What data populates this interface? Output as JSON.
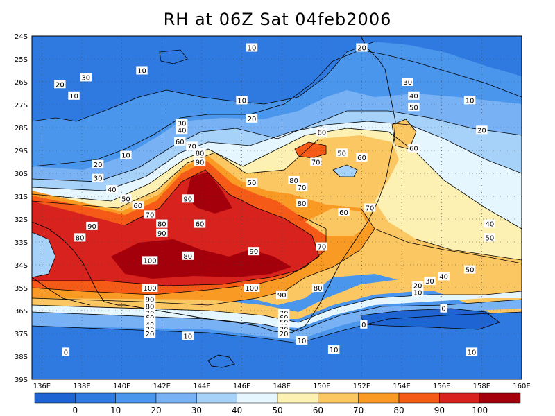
{
  "title": "RH at 06Z Sat 04feb2006",
  "map": {
    "lat_labels": [
      "24S",
      "25S",
      "26S",
      "27S",
      "28S",
      "29S",
      "30S",
      "31S",
      "32S",
      "33S",
      "34S",
      "35S",
      "36S",
      "37S",
      "38S",
      "39S"
    ],
    "lon_labels": [
      "136E",
      "138E",
      "140E",
      "142E",
      "144E",
      "146E",
      "148E",
      "150E",
      "152E",
      "154E",
      "156E",
      "158E",
      "160E"
    ],
    "lon_range": [
      135.5,
      160
    ],
    "lat_range": [
      -39,
      -24
    ],
    "grid": "dotted",
    "contour_labels": [
      {
        "text": "10",
        "lon": 146.5,
        "lat": -24.5
      },
      {
        "text": "20",
        "lon": 152,
        "lat": -24.5
      },
      {
        "text": "10",
        "lon": 141,
        "lat": -25.5
      },
      {
        "text": "30",
        "lon": 138.2,
        "lat": -25.8
      },
      {
        "text": "30",
        "lon": 154.3,
        "lat": -26
      },
      {
        "text": "20",
        "lon": 136.9,
        "lat": -26.1
      },
      {
        "text": "10",
        "lon": 137.6,
        "lat": -26.6
      },
      {
        "text": "40",
        "lon": 154.6,
        "lat": -26.6
      },
      {
        "text": "10",
        "lon": 146,
        "lat": -26.8
      },
      {
        "text": "10",
        "lon": 157.4,
        "lat": -26.8
      },
      {
        "text": "50",
        "lon": 154.6,
        "lat": -27.1
      },
      {
        "text": "20",
        "lon": 146.5,
        "lat": -27.6
      },
      {
        "text": "30",
        "lon": 143,
        "lat": -27.8
      },
      {
        "text": "40",
        "lon": 143,
        "lat": -28.1
      },
      {
        "text": "20",
        "lon": 158,
        "lat": -28.1
      },
      {
        "text": "60",
        "lon": 150,
        "lat": -28.2
      },
      {
        "text": "10",
        "lon": 140.2,
        "lat": -29.2
      },
      {
        "text": "60",
        "lon": 142.9,
        "lat": -28.6
      },
      {
        "text": "70",
        "lon": 143.5,
        "lat": -28.8
      },
      {
        "text": "60",
        "lon": 154.6,
        "lat": -28.9
      },
      {
        "text": "80",
        "lon": 143.9,
        "lat": -29.1
      },
      {
        "text": "50",
        "lon": 151,
        "lat": -29.1
      },
      {
        "text": "60",
        "lon": 152,
        "lat": -29.3
      },
      {
        "text": "90",
        "lon": 143.9,
        "lat": -29.5
      },
      {
        "text": "70",
        "lon": 149.7,
        "lat": -29.5
      },
      {
        "text": "20",
        "lon": 138.8,
        "lat": -29.6
      },
      {
        "text": "30",
        "lon": 138.8,
        "lat": -30.2
      },
      {
        "text": "50",
        "lon": 146.5,
        "lat": -30.4
      },
      {
        "text": "80",
        "lon": 148.6,
        "lat": -30.3
      },
      {
        "text": "40",
        "lon": 139.5,
        "lat": -30.7
      },
      {
        "text": "70",
        "lon": 149,
        "lat": -30.6
      },
      {
        "text": "50",
        "lon": 140.2,
        "lat": -31.1
      },
      {
        "text": "90",
        "lon": 143.3,
        "lat": -31.1
      },
      {
        "text": "80",
        "lon": 149,
        "lat": -31.3
      },
      {
        "text": "60",
        "lon": 140.8,
        "lat": -31.4
      },
      {
        "text": "70",
        "lon": 152.4,
        "lat": -31.5
      },
      {
        "text": "60",
        "lon": 151.1,
        "lat": -31.7
      },
      {
        "text": "70",
        "lon": 141.4,
        "lat": -31.8
      },
      {
        "text": "40",
        "lon": 158.4,
        "lat": -32.2
      },
      {
        "text": "80",
        "lon": 142,
        "lat": -32.2
      },
      {
        "text": "60",
        "lon": 143.9,
        "lat": -32.2
      },
      {
        "text": "90",
        "lon": 138.5,
        "lat": -32.3
      },
      {
        "text": "90",
        "lon": 142,
        "lat": -32.6
      },
      {
        "text": "80",
        "lon": 137.9,
        "lat": -32.8
      },
      {
        "text": "50",
        "lon": 158.4,
        "lat": -32.8
      },
      {
        "text": "70",
        "lon": 150,
        "lat": -33.2
      },
      {
        "text": "90",
        "lon": 146.6,
        "lat": -33.4
      },
      {
        "text": "80",
        "lon": 143.3,
        "lat": -33.6
      },
      {
        "text": "100",
        "lon": 141.4,
        "lat": -33.8
      },
      {
        "text": "50",
        "lon": 157.4,
        "lat": -34.2
      },
      {
        "text": "40",
        "lon": 156.1,
        "lat": -34.5
      },
      {
        "text": "30",
        "lon": 155.4,
        "lat": -34.7
      },
      {
        "text": "20",
        "lon": 154.8,
        "lat": -34.9
      },
      {
        "text": "100",
        "lon": 141.4,
        "lat": -35
      },
      {
        "text": "100",
        "lon": 146.5,
        "lat": -35
      },
      {
        "text": "80",
        "lon": 149.8,
        "lat": -35
      },
      {
        "text": "10",
        "lon": 154.8,
        "lat": -35.2
      },
      {
        "text": "90",
        "lon": 148,
        "lat": -35.3
      },
      {
        "text": "90",
        "lon": 141.4,
        "lat": -35.5
      },
      {
        "text": "80",
        "lon": 141.4,
        "lat": -35.8
      },
      {
        "text": "0",
        "lon": 156.1,
        "lat": -35.9
      },
      {
        "text": "70",
        "lon": 141.4,
        "lat": -36.1
      },
      {
        "text": "70",
        "lon": 148.1,
        "lat": -36.1
      },
      {
        "text": "60",
        "lon": 141.4,
        "lat": -36.3
      },
      {
        "text": "60",
        "lon": 148.1,
        "lat": -36.3
      },
      {
        "text": "50",
        "lon": 141.4,
        "lat": -36.5
      },
      {
        "text": "50",
        "lon": 148.1,
        "lat": -36.5
      },
      {
        "text": "40",
        "lon": 141.4,
        "lat": -36.6
      },
      {
        "text": "40",
        "lon": 148.1,
        "lat": -36.7
      },
      {
        "text": "0",
        "lon": 152.1,
        "lat": -36.6
      },
      {
        "text": "30",
        "lon": 141.4,
        "lat": -36.8
      },
      {
        "text": "30",
        "lon": 148.1,
        "lat": -36.8
      },
      {
        "text": "20",
        "lon": 141.4,
        "lat": -37
      },
      {
        "text": "20",
        "lon": 148.1,
        "lat": -37
      },
      {
        "text": "10",
        "lon": 143.3,
        "lat": -37.1
      },
      {
        "text": "10",
        "lon": 149,
        "lat": -37.3
      },
      {
        "text": "0",
        "lon": 137.2,
        "lat": -37.8
      },
      {
        "text": "10",
        "lon": 150.6,
        "lat": -37.7
      },
      {
        "text": "10",
        "lon": 157.5,
        "lat": -37.8
      }
    ]
  },
  "colorbar": {
    "tick_labels": [
      "0",
      "10",
      "20",
      "30",
      "40",
      "50",
      "60",
      "70",
      "80",
      "90",
      "100"
    ],
    "colors": [
      "#1e64d2",
      "#2e7ae0",
      "#4a96ec",
      "#78b2f4",
      "#a6d2fa",
      "#e6f6ff",
      "#fcf0b2",
      "#fbc763",
      "#f99a24",
      "#f55a16",
      "#d7221e",
      "#a4000c"
    ]
  }
}
